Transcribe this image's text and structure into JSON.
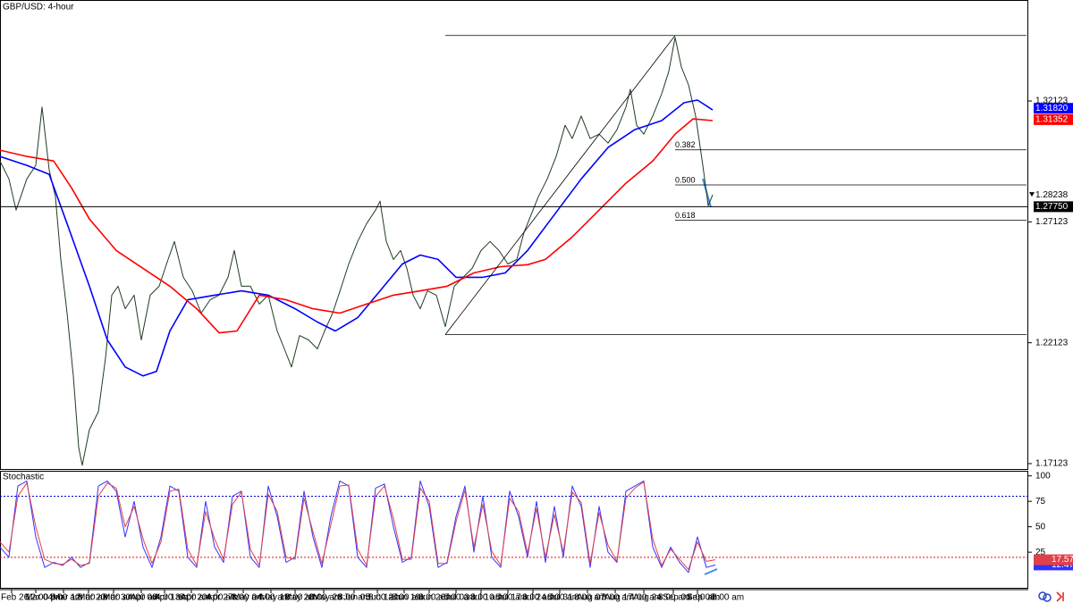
{
  "chart_data": [
    {
      "type": "line",
      "title": "GBP/USD: 4-hour",
      "xlim": [
        0,
        1150
      ],
      "ylim": [
        1.169,
        1.363
      ],
      "yticks": [
        {
          "value": 1.32123,
          "label": "1.32123"
        },
        {
          "value": 1.27123,
          "label": "1.27123"
        },
        {
          "value": 1.22123,
          "label": "1.22123"
        },
        {
          "value": 1.17123,
          "label": "1.17123"
        }
      ],
      "xticks": [
        {
          "value": 13,
          "label": "Feb 26"
        },
        {
          "value": 40,
          "label": "Mar 04"
        },
        {
          "value": 71,
          "label": "Mar 12"
        },
        {
          "value": 99,
          "label": "Mar 20"
        },
        {
          "value": 127,
          "label": "Mar 30"
        },
        {
          "value": 158,
          "label": "Apr 06"
        },
        {
          "value": 184,
          "label": "Apr 13"
        },
        {
          "value": 214,
          "label": "Apr 20"
        },
        {
          "value": 243,
          "label": "Apr 27"
        },
        {
          "value": 272,
          "label": "May 04"
        },
        {
          "value": 303,
          "label": "May 12"
        },
        {
          "value": 330,
          "label": "May 20"
        },
        {
          "value": 362,
          "label": "May 28"
        },
        {
          "value": 396,
          "label": "Jun 05"
        },
        {
          "value": 422,
          "label": "Jun 12"
        },
        {
          "value": 452,
          "label": "Jun 19"
        },
        {
          "value": 480,
          "label": "Jun 26"
        },
        {
          "value": 510,
          "label": "Jul 03"
        },
        {
          "value": 538,
          "label": "Jul 10"
        },
        {
          "value": 568,
          "label": "Jul 17"
        },
        {
          "value": 596,
          "label": "Jul 24"
        },
        {
          "value": 626,
          "label": "Jul 31"
        },
        {
          "value": 657,
          "label": "Aug 07"
        },
        {
          "value": 688,
          "label": "Aug 17"
        },
        {
          "value": 720,
          "label": "Aug 24"
        },
        {
          "value": 753,
          "label": "Sep 01"
        },
        {
          "value": 780,
          "label": "Sep 08"
        }
      ],
      "xtick_times": [
        "12:00 pm",
        "8:00 am",
        "8:00 am",
        "8:00 am",
        "4:00 am",
        "4:00 am",
        "8:00 am",
        "4:00 am",
        "8:00 am",
        "4:00 am",
        "8:00 am",
        "8:00 am",
        "8:00 am",
        "8:00 am",
        "8:00 am",
        "8:00 am",
        "8:00 am",
        "8:00 am",
        "8:00 am",
        "8:00 am",
        "8:00 am",
        "8:00 am",
        "8:00 am",
        "4:00 am",
        "8:00 am",
        "4:00 am",
        "8:00 am"
      ],
      "series": [
        {
          "color": "#1f3d1f",
          "width": 1,
          "x": [
            0,
            10,
            18,
            30,
            40,
            47,
            55,
            62,
            68,
            75,
            82,
            88,
            92,
            100,
            110,
            118,
            125,
            132,
            140,
            150,
            158,
            168,
            178,
            188,
            195,
            205,
            215,
            225,
            235,
            245,
            255,
            262,
            270,
            280,
            290,
            300,
            310,
            318,
            326,
            335,
            345,
            355,
            363,
            372,
            382,
            390,
            400,
            410,
            420,
            425,
            432,
            440,
            448,
            455,
            462,
            470,
            478,
            488,
            498,
            508,
            518,
            528,
            538,
            548,
            558,
            568,
            578,
            586,
            594,
            602,
            612,
            622,
            632,
            640,
            650,
            660,
            670,
            680,
            690,
            700,
            705,
            712,
            720,
            730,
            740,
            748,
            755,
            762,
            770,
            778,
            786,
            792,
            797
          ],
          "values": [
            1.2964,
            1.289,
            1.2761,
            1.289,
            1.2946,
            1.3187,
            1.2927,
            1.2816,
            1.2557,
            1.2335,
            1.2075,
            1.1779,
            1.1705,
            1.1853,
            1.1927,
            1.2149,
            1.2409,
            1.2446,
            1.2353,
            1.2409,
            1.2224,
            1.2409,
            1.2446,
            1.2557,
            1.2631,
            1.2483,
            1.2427,
            1.2335,
            1.239,
            1.2409,
            1.2483,
            1.2594,
            1.2446,
            1.2446,
            1.2372,
            1.2409,
            1.2261,
            1.2187,
            1.2112,
            1.2242,
            1.2224,
            1.2187,
            1.2261,
            1.2335,
            1.2446,
            1.2538,
            1.2631,
            1.2705,
            1.2761,
            1.2798,
            1.2631,
            1.2557,
            1.2594,
            1.252,
            1.2409,
            1.2353,
            1.2427,
            1.2409,
            1.2279,
            1.2446,
            1.2483,
            1.252,
            1.2594,
            1.2631,
            1.2594,
            1.2538,
            1.2557,
            1.2668,
            1.2742,
            1.2816,
            1.289,
            1.2983,
            1.3112,
            1.3057,
            1.315,
            1.3057,
            1.3075,
            1.3038,
            1.3094,
            1.3187,
            1.3261,
            1.3112,
            1.3075,
            1.315,
            1.3242,
            1.3335,
            1.3475,
            1.3353,
            1.3279,
            1.315,
            1.2946,
            1.2779,
            1.2824
          ]
        },
        {
          "color": "#0000ff",
          "width": 1.6,
          "x": [
            0,
            30,
            55,
            75,
            100,
            120,
            140,
            160,
            175,
            190,
            210,
            240,
            270,
            300,
            330,
            355,
            375,
            400,
            425,
            450,
            470,
            490,
            510,
            540,
            565,
            590,
            620,
            650,
            680,
            710,
            740,
            765,
            780,
            797
          ],
          "values": [
            1.2983,
            1.2946,
            1.2909,
            1.2705,
            1.2446,
            1.2224,
            1.2112,
            1.2075,
            1.2094,
            1.2261,
            1.239,
            1.2409,
            1.2427,
            1.2409,
            1.2353,
            1.2298,
            1.2261,
            1.2316,
            1.2427,
            1.2538,
            1.2575,
            1.2557,
            1.2483,
            1.2483,
            1.2501,
            1.2594,
            1.2742,
            1.289,
            1.302,
            1.3094,
            1.3131,
            1.3205,
            1.3216,
            1.3175
          ]
        },
        {
          "color": "#ff0000",
          "width": 1.6,
          "x": [
            0,
            30,
            60,
            80,
            100,
            130,
            160,
            190,
            220,
            245,
            265,
            290,
            320,
            350,
            380,
            410,
            440,
            470,
            500,
            530,
            560,
            590,
            610,
            640,
            670,
            700,
            730,
            755,
            775,
            797
          ],
          "values": [
            1.3009,
            1.2983,
            1.2964,
            1.2853,
            1.2724,
            1.2594,
            1.252,
            1.2446,
            1.2353,
            1.2253,
            1.2261,
            1.2409,
            1.239,
            1.2353,
            1.2335,
            1.2372,
            1.2409,
            1.2427,
            1.2446,
            1.2501,
            1.2527,
            1.2535,
            1.2557,
            1.265,
            1.2761,
            1.2872,
            1.2964,
            1.3075,
            1.3138,
            1.3131
          ]
        }
      ],
      "hline": {
        "value": 1.2775,
        "label": "1.27750"
      },
      "fib": {
        "x_start": 498,
        "x_end": 755,
        "high": 1.3483,
        "low": 1.2246,
        "x_right": 1148,
        "levels": [
          {
            "value": 1.301,
            "label": "0.382"
          },
          {
            "value": 1.2865,
            "label": "0.500"
          },
          {
            "value": 1.2719,
            "label": "0.618"
          }
        ]
      },
      "price_markers": [
        {
          "value": 1.3182,
          "label": "1.31820",
          "color": "#0000ff"
        },
        {
          "value": 1.31352,
          "label": "1.31352",
          "color": "#ff0000"
        },
        {
          "value": 1.28238,
          "label": "1.28238",
          "color": "#000000"
        }
      ]
    },
    {
      "type": "line",
      "title": "Stochastic",
      "xlim": [
        0,
        1150
      ],
      "ylim": [
        -10,
        105
      ],
      "yticks": [
        100,
        75,
        50,
        25
      ],
      "levels": [
        {
          "value": 80,
          "color": "#0000cc"
        },
        {
          "value": 20,
          "color": "#ff0000"
        }
      ],
      "series": [
        {
          "color": "#3333ff",
          "x": [
            0,
            10,
            20,
            30,
            40,
            50,
            60,
            70,
            80,
            90,
            100,
            110,
            120,
            130,
            140,
            150,
            160,
            170,
            180,
            190,
            200,
            210,
            220,
            230,
            240,
            250,
            260,
            270,
            280,
            290,
            300,
            310,
            320,
            330,
            340,
            350,
            360,
            370,
            380,
            390,
            400,
            410,
            420,
            430,
            440,
            450,
            460,
            470,
            480,
            490,
            500,
            510,
            520,
            530,
            540,
            550,
            560,
            570,
            580,
            590,
            600,
            610,
            620,
            630,
            640,
            650,
            660,
            670,
            680,
            690,
            700,
            710,
            720,
            730,
            740,
            750,
            760,
            770,
            780,
            790,
            800
          ],
          "values": [
            30,
            20,
            90,
            95,
            40,
            10,
            15,
            12,
            20,
            10,
            15,
            90,
            95,
            85,
            40,
            75,
            30,
            10,
            40,
            90,
            85,
            20,
            10,
            75,
            30,
            15,
            80,
            85,
            20,
            10,
            90,
            60,
            15,
            20,
            85,
            40,
            10,
            60,
            95,
            90,
            20,
            10,
            88,
            92,
            50,
            15,
            20,
            95,
            70,
            10,
            15,
            60,
            90,
            25,
            80,
            20,
            10,
            85,
            60,
            20,
            75,
            15,
            70,
            20,
            90,
            70,
            10,
            70,
            25,
            15,
            85,
            90,
            95,
            30,
            10,
            30,
            15,
            5,
            40,
            10,
            12.47
          ]
        },
        {
          "color": "#e0404a",
          "x": [
            0,
            10,
            20,
            30,
            40,
            50,
            60,
            70,
            80,
            90,
            100,
            110,
            120,
            130,
            140,
            150,
            160,
            170,
            180,
            190,
            200,
            210,
            220,
            230,
            240,
            250,
            260,
            270,
            280,
            290,
            300,
            310,
            320,
            330,
            340,
            350,
            360,
            370,
            380,
            390,
            400,
            410,
            420,
            430,
            440,
            450,
            460,
            470,
            480,
            490,
            500,
            510,
            520,
            530,
            540,
            550,
            560,
            570,
            580,
            590,
            600,
            610,
            620,
            630,
            640,
            650,
            660,
            670,
            680,
            690,
            700,
            710,
            720,
            730,
            740,
            750,
            760,
            770,
            780,
            790,
            800
          ],
          "values": [
            35,
            25,
            80,
            93,
            50,
            18,
            14,
            13,
            18,
            12,
            14,
            80,
            93,
            88,
            50,
            70,
            38,
            14,
            35,
            85,
            87,
            28,
            12,
            65,
            38,
            18,
            72,
            84,
            28,
            12,
            82,
            65,
            20,
            18,
            78,
            45,
            14,
            52,
            90,
            91,
            28,
            12,
            80,
            90,
            58,
            18,
            18,
            88,
            75,
            14,
            14,
            55,
            86,
            30,
            72,
            26,
            12,
            78,
            65,
            24,
            68,
            20,
            62,
            25,
            84,
            74,
            14,
            64,
            32,
            16,
            78,
            88,
            94,
            38,
            12,
            28,
            18,
            8,
            35,
            16,
            17.57
          ]
        }
      ]
    }
  ]
}
